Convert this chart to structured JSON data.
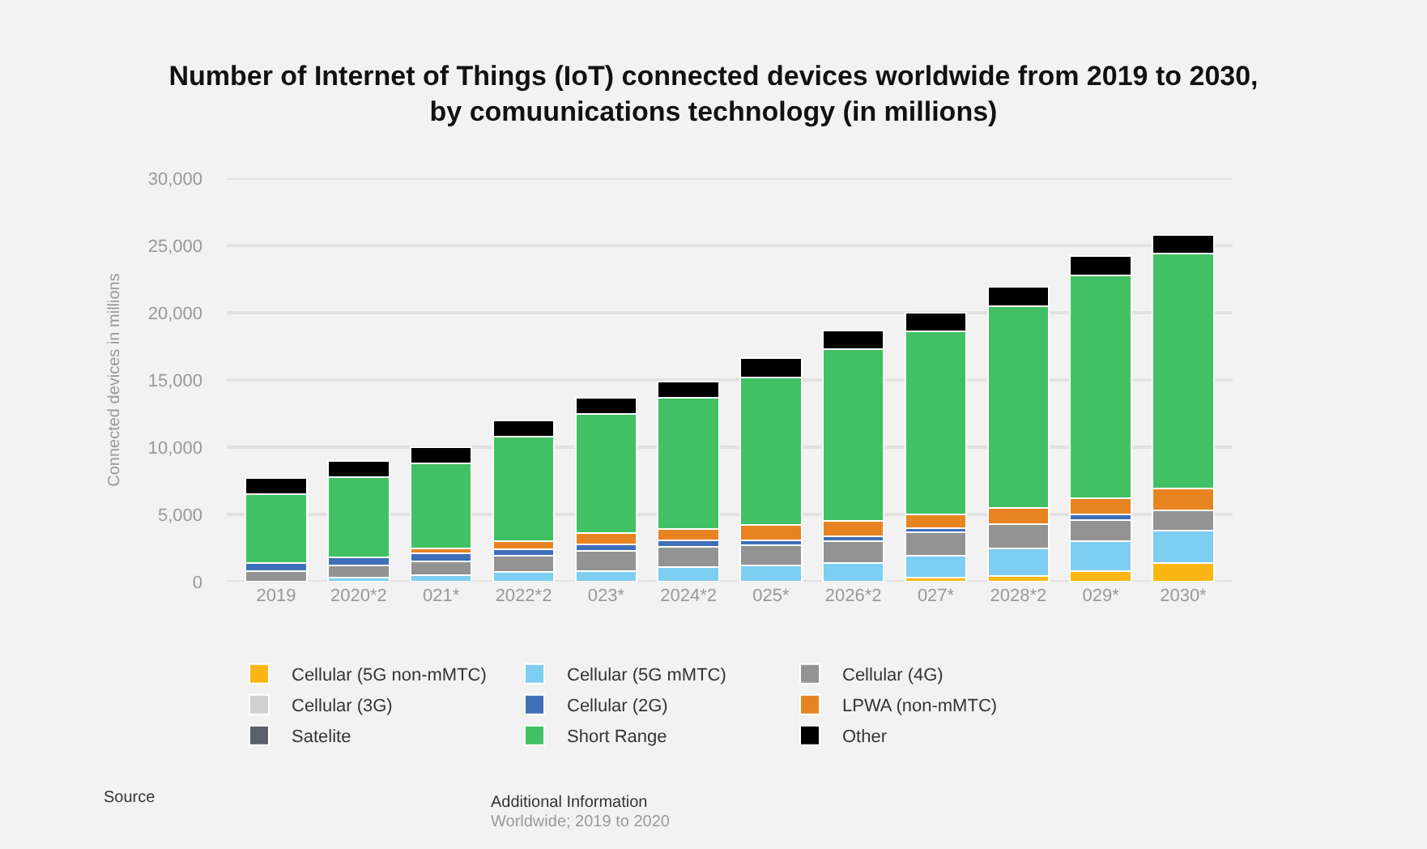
{
  "chart_data": {
    "type": "bar",
    "stacked": true,
    "title": "Number of Internet of Things (IoT) connected devices worldwide from 2019 to 2030,\nby comuunications technology (in millions)",
    "ylabel": "Connected devices in millions",
    "categories": [
      "2019",
      "2020*2",
      "021*",
      "2022*2",
      "023*",
      "2024*2",
      "025*",
      "2026*2",
      "027*",
      "2028*2",
      "029*",
      "2030*"
    ],
    "series": [
      {
        "name": "Cellular (5G non-mMTC)",
        "color": "#fbb614",
        "values": [
          null,
          null,
          null,
          null,
          null,
          null,
          null,
          null,
          300,
          400,
          800,
          1400
        ]
      },
      {
        "name": "Cellular (5G mMTC)",
        "color": "#7dcef1",
        "values": [
          null,
          300,
          500,
          700,
          800,
          1100,
          1200,
          1400,
          1600,
          2100,
          2200,
          2400
        ]
      },
      {
        "name": "Cellular (4G)",
        "color": "#939393",
        "values": [
          800,
          900,
          1000,
          1200,
          1500,
          1500,
          1500,
          1600,
          1800,
          1800,
          1600,
          1500
        ]
      },
      {
        "name": "Cellular (3G)",
        "color": "#d0d0d0",
        "values": [
          null,
          null,
          null,
          null,
          null,
          null,
          null,
          null,
          null,
          null,
          null,
          null
        ]
      },
      {
        "name": "Cellular (2G)",
        "color": "#3f6fb8",
        "values": [
          600,
          600,
          600,
          500,
          500,
          500,
          400,
          400,
          300,
          null,
          400,
          null
        ]
      },
      {
        "name": "LPWA (non-mMTC)",
        "color": "#e88321",
        "values": [
          null,
          null,
          400,
          600,
          800,
          800,
          1100,
          1100,
          1000,
          1200,
          1200,
          1600
        ]
      },
      {
        "name": "Satelite",
        "color": "#5a5f69",
        "values": [
          null,
          null,
          null,
          null,
          null,
          null,
          null,
          null,
          null,
          null,
          null,
          null
        ]
      },
      {
        "name": "Short Range",
        "color": "#41c163",
        "values": [
          5100,
          6000,
          6300,
          7800,
          8900,
          9800,
          11000,
          12800,
          13600,
          15000,
          16600,
          17500
        ]
      },
      {
        "name": "Other",
        "color": "#000000",
        "values": [
          1200,
          1200,
          1200,
          1200,
          1200,
          1200,
          1400,
          1400,
          1400,
          1400,
          1400,
          1400
        ]
      }
    ],
    "ylim": [
      0,
      30000
    ],
    "yticks": [
      {
        "value": 0,
        "label": "0"
      },
      {
        "value": 5000,
        "label": "5,000"
      },
      {
        "value": 10000,
        "label": "10,000"
      },
      {
        "value": 15000,
        "label": "15,000"
      },
      {
        "value": 20000,
        "label": "20,000"
      },
      {
        "value": 25000,
        "label": "25,000"
      },
      {
        "value": 30000,
        "label": "30,000"
      }
    ],
    "grid": "y",
    "legend": "bottom",
    "annotations": [
      "Source",
      "Additional Information",
      "Worldwide; 2019 to 2020"
    ]
  }
}
